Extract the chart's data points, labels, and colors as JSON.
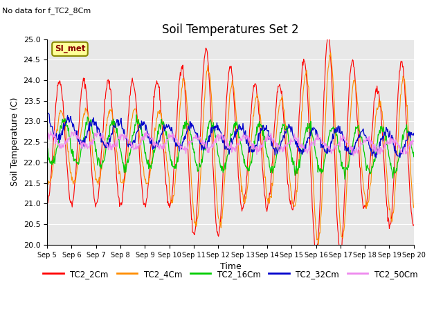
{
  "title": "Soil Temperatures Set 2",
  "subtitle": "No data for f_TC2_8Cm",
  "xlabel": "Time",
  "ylabel": "Soil Temperature (C)",
  "ylim": [
    20.0,
    25.0
  ],
  "yticks": [
    20.0,
    20.5,
    21.0,
    21.5,
    22.0,
    22.5,
    23.0,
    23.5,
    24.0,
    24.5,
    25.0
  ],
  "x_days": [
    "Sep 5",
    "Sep 6",
    "Sep 7",
    "Sep 8",
    "Sep 9",
    "Sep 10",
    "Sep 11",
    "Sep 12",
    "Sep 13",
    "Sep 14",
    "Sep 15",
    "Sep 16",
    "Sep 17",
    "Sep 18",
    "Sep 19",
    "Sep 20"
  ],
  "colors": {
    "TC2_2Cm": "#ff0000",
    "TC2_4Cm": "#ff8c00",
    "TC2_16Cm": "#00cc00",
    "TC2_32Cm": "#0000cc",
    "TC2_50Cm": "#ee88ee"
  },
  "bg_color": "#e8e8e8",
  "annotation_box_color": "#ffff99",
  "annotation_box_border": "#888800",
  "annotation_text": "SI_met",
  "annotation_text_color": "#880000"
}
